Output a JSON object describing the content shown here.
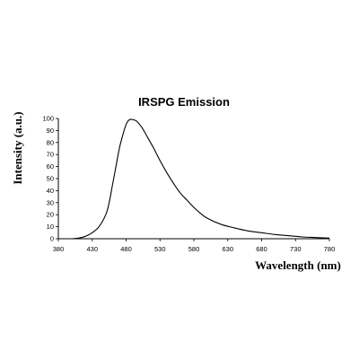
{
  "chart_data": {
    "type": "line",
    "title": "IRSPG Emission",
    "xlabel": "Wavelength (nm)",
    "ylabel": "Intensity (a.u.)",
    "xlim": [
      380,
      780
    ],
    "ylim": [
      0,
      100
    ],
    "x_ticks": [
      380,
      430,
      480,
      530,
      580,
      630,
      680,
      730,
      780
    ],
    "y_ticks": [
      0,
      10,
      20,
      30,
      40,
      50,
      60,
      70,
      80,
      90,
      100
    ],
    "grid": false,
    "legend": "none",
    "line_color": "#000000",
    "series": [
      {
        "x": [
          400,
          410,
          420,
          430,
          440,
          450,
          455,
          460,
          465,
          470,
          475,
          480,
          485,
          490,
          495,
          500,
          505,
          510,
          520,
          530,
          540,
          550,
          560,
          570,
          580,
          590,
          600,
          620,
          640,
          660,
          680,
          700,
          720,
          740,
          760,
          780
        ],
        "y": [
          0,
          0.5,
          2,
          5,
          10,
          20,
          30,
          45,
          60,
          75,
          86,
          95,
          99,
          99,
          98,
          95,
          91,
          86,
          76,
          65,
          55,
          46,
          38,
          32,
          26,
          21,
          17,
          12,
          9,
          6.5,
          5,
          3.5,
          2.5,
          1.5,
          1,
          0.5
        ]
      }
    ]
  }
}
